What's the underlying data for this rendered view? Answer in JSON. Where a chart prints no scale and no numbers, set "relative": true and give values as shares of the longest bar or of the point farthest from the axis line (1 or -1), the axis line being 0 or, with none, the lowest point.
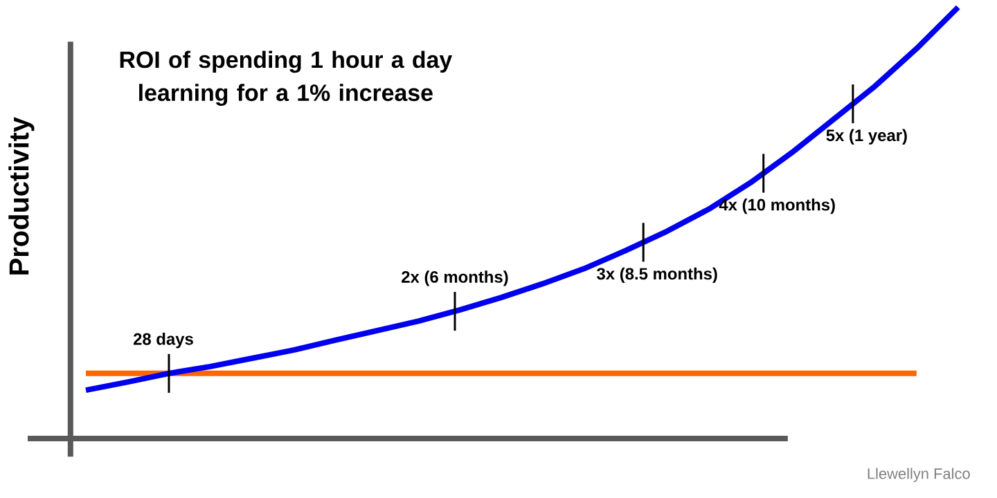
{
  "chart_data": {
    "type": "line",
    "title": "ROI of spending **1 hour** a day learning for a 1% increase",
    "ylabel": "Productivity",
    "relative": true,
    "categories": [
      null,
      null,
      null,
      null,
      null,
      null,
      null,
      null,
      null,
      null,
      null,
      null,
      null,
      null,
      null,
      null,
      null,
      null,
      null,
      null,
      null,
      null
    ],
    "series": [
      {
        "color": "#0000ee",
        "values": [
          0.112,
          0.131,
          0.151,
          0.167,
          0.186,
          0.205,
          0.228,
          0.25,
          0.272,
          0.298,
          0.327,
          0.359,
          0.394,
          0.436,
          0.481,
          0.532,
          0.593,
          0.663,
          0.74,
          0.817,
          0.904,
          1
        ]
      },
      {
        "color": "#ff6600",
        "values": [
          0.151,
          0.151,
          0.151,
          0.151,
          0.151,
          0.151,
          0.151,
          0.151,
          0.151,
          0.151,
          0.151,
          0.151,
          0.151,
          0.151,
          0.151,
          0.151,
          0.151,
          0.151,
          0.151,
          0.151,
          0.151,
          null
        ]
      }
    ],
    "annotations": [
      {
        "text": "28 days",
        "y": 0.151
      },
      {
        "text": "2x (6 months)",
        "y": 0.295
      },
      {
        "text": "3x (8.5 months)",
        "y": 0.455
      },
      {
        "text": "4x (10 months)",
        "y": 0.615
      },
      {
        "text": "5x (1 year)",
        "y": 0.776
      },
      "Llewellyn Falco"
    ],
    "marker": "none",
    "line_style": "solid"
  }
}
